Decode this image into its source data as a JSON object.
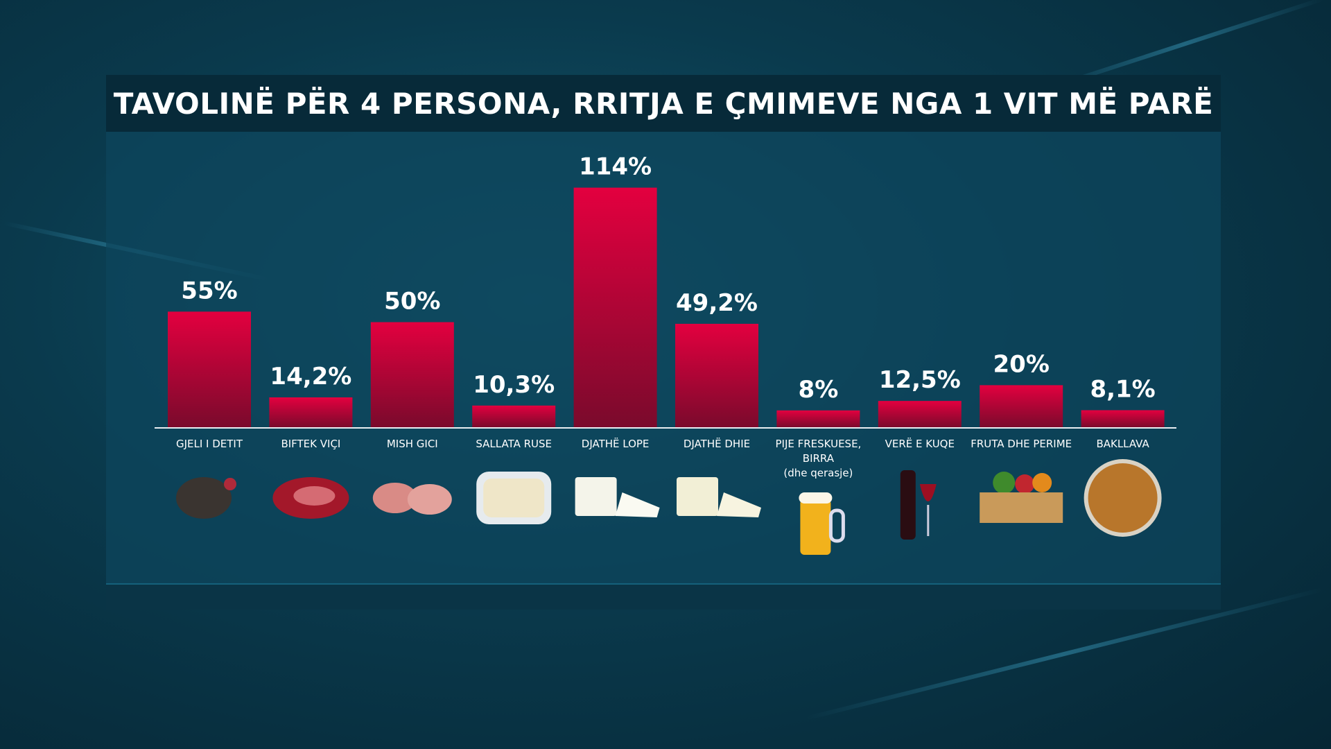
{
  "chart_data": {
    "type": "bar",
    "title": "TAVOLINË PËR 4 PERSONA, RRITJA E ÇMIMEVE NGA 1 VIT MË PARË",
    "categories": [
      "GJELI I DETIT",
      "BIFTEK VIÇI",
      "MISH GICI",
      "SALLATA RUSE",
      "DJATHË LOPE",
      "DJATHË DHIE",
      "PIJE FRESKUESE, BIRRA",
      "VERË E KUQE",
      "FRUTA DHE PERIME",
      "BAKLLAVA"
    ],
    "category_notes": [
      "",
      "",
      "",
      "",
      "",
      "",
      "(dhe qerasje)",
      "",
      "",
      ""
    ],
    "values": [
      55,
      14.2,
      50,
      10.3,
      114,
      49.2,
      8,
      12.5,
      20,
      8.1
    ],
    "value_labels": [
      "55%",
      "14,2%",
      "50%",
      "10,3%",
      "114%",
      "49,2%",
      "8%",
      "12,5%",
      "20%",
      "8,1%"
    ],
    "icons": [
      "turkey-icon",
      "beef-steak-icon",
      "pork-chops-icon",
      "russian-salad-icon",
      "cow-cheese-icon",
      "goat-cheese-icon",
      "beer-mug-icon",
      "red-wine-icon",
      "vegetable-crate-icon",
      "baklava-icon"
    ],
    "ylim": [
      0,
      120
    ],
    "bar_color_top": "#e3003f",
    "bar_color_bottom": "#7a0a2c",
    "xlabel": "",
    "ylabel": "",
    "grid": false
  }
}
